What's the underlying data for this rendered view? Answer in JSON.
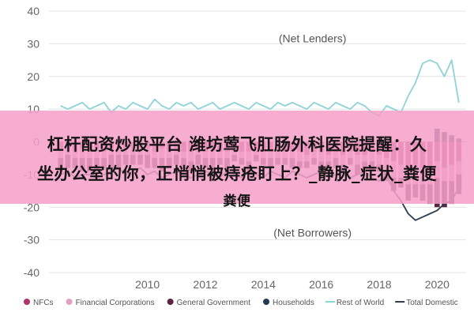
{
  "chart_data": {
    "type": "bar",
    "title": "",
    "xlabel": "",
    "ylabel": "",
    "ylim": [
      -40,
      40
    ],
    "xlim": [
      2006.6,
      2021.0
    ],
    "yticks": [
      -40,
      -30,
      -20,
      -10,
      0,
      10,
      20,
      30,
      40
    ],
    "ytick_labels": [
      "-40",
      "-30",
      "-20",
      "-10",
      "0",
      "10",
      "20",
      "30",
      "40"
    ],
    "xticks": [
      2010,
      2012,
      2014,
      2016,
      2018,
      2020
    ],
    "xtick_labels": [
      "2010",
      "2012",
      "2014",
      "2016",
      "2018",
      "2020"
    ],
    "grid": true,
    "legend_position": "bottom",
    "annotations": [
      {
        "id": "net-lenders",
        "text": "(Net Lenders)",
        "x": 2015.7,
        "y": 30.5
      },
      {
        "id": "net-borrowers",
        "text": "(Net Borrowers)",
        "x": 2015.7,
        "y": -29
      }
    ],
    "x": [
      2007.0,
      2007.25,
      2007.5,
      2007.75,
      2008.0,
      2008.25,
      2008.5,
      2008.75,
      2009.0,
      2009.25,
      2009.5,
      2009.75,
      2010.0,
      2010.25,
      2010.5,
      2010.75,
      2011.0,
      2011.25,
      2011.5,
      2011.75,
      2012.0,
      2012.25,
      2012.5,
      2012.75,
      2013.0,
      2013.25,
      2013.5,
      2013.75,
      2014.0,
      2014.25,
      2014.5,
      2014.75,
      2015.0,
      2015.25,
      2015.5,
      2015.75,
      2016.0,
      2016.25,
      2016.5,
      2016.75,
      2017.0,
      2017.25,
      2017.5,
      2017.75,
      2018.0,
      2018.25,
      2018.5,
      2018.75,
      2019.0,
      2019.25,
      2019.5,
      2019.75,
      2020.0,
      2020.25,
      2020.5,
      2020.75
    ],
    "series": [
      {
        "name": "NFCs",
        "kind": "bar",
        "color": "#b0336e",
        "values": [
          -2,
          -2,
          -3,
          -2,
          -3,
          -2,
          -3,
          -2,
          -1,
          -2,
          -2,
          -1,
          -2,
          -3,
          -2,
          -3,
          -2,
          -3,
          -3,
          -2,
          -3,
          -2,
          -3,
          -3,
          -2,
          -3,
          -3,
          -2,
          -3,
          -3,
          -2,
          -3,
          -3,
          -3,
          -4,
          -3,
          -3,
          -4,
          -3,
          -4,
          -3,
          -4,
          -4,
          -3,
          -4,
          -5,
          -6,
          -7,
          -8,
          -7,
          -8,
          -9,
          -6,
          -8,
          -7,
          -6
        ]
      },
      {
        "name": "Financial Corporations",
        "kind": "bar",
        "color": "#e4a0c0",
        "values": [
          -3,
          -2,
          -2,
          -3,
          -2,
          -3,
          -2,
          -2,
          -3,
          -2,
          -2,
          -3,
          -2,
          -2,
          -3,
          -2,
          -2,
          -2,
          -3,
          -2,
          -2,
          -3,
          -2,
          -2,
          -2,
          -2,
          -3,
          -2,
          -2,
          -2,
          -3,
          -2,
          -2,
          -3,
          -2,
          -2,
          -3,
          -2,
          -2,
          -3,
          -2,
          -3,
          -2,
          -3,
          -3,
          -4,
          -5,
          -4,
          -5,
          -6,
          -5,
          -4,
          -5,
          -4,
          -5,
          -4
        ]
      },
      {
        "name": "General Government",
        "kind": "bar",
        "color": "#5c2342",
        "values": [
          -4,
          -4,
          -3,
          -4,
          -4,
          -4,
          -3,
          -4,
          -4,
          -3,
          -3,
          -3,
          -4,
          -3,
          -4,
          -3,
          -3,
          -3,
          -3,
          -3,
          -3,
          -3,
          -2,
          -3,
          -2,
          -2,
          -3,
          -2,
          -2,
          -3,
          -2,
          -2,
          -3,
          -2,
          -2,
          -2,
          -2,
          -2,
          -3,
          -2,
          -2,
          -3,
          -2,
          -3,
          -2,
          -3,
          -4,
          -3,
          -5,
          -4,
          -5,
          -6,
          -9,
          -8,
          -7,
          -6
        ]
      },
      {
        "name": "Households",
        "kind": "bar",
        "color": "#243a55",
        "values": [
          0,
          0,
          0,
          0,
          0,
          0,
          0,
          0,
          1,
          0,
          0,
          0,
          0,
          0,
          0,
          0,
          0,
          0,
          0,
          0,
          0,
          0,
          0,
          0,
          0,
          0,
          0,
          0,
          0,
          0,
          0,
          0,
          0,
          0,
          0,
          0,
          0,
          0,
          0,
          0,
          0,
          0,
          0,
          0,
          0,
          0,
          0,
          0,
          0,
          0,
          0,
          0,
          4,
          3,
          2,
          1
        ]
      },
      {
        "name": "Rest of World",
        "kind": "line",
        "color": "#8fd3d6",
        "values": [
          11,
          10,
          11,
          12,
          10,
          11,
          12,
          9,
          11,
          10,
          12,
          11,
          10,
          13,
          11,
          10,
          12,
          11,
          12,
          10,
          11,
          12,
          10,
          11,
          12,
          11,
          10,
          12,
          11,
          10,
          12,
          11,
          12,
          11,
          10,
          12,
          11,
          10,
          12,
          11,
          10,
          12,
          11,
          9,
          8,
          11,
          10,
          9,
          14,
          18,
          24,
          25,
          24,
          20,
          25,
          12
        ]
      },
      {
        "name": "Total Domestic",
        "kind": "line",
        "color": "#2b3f4f",
        "values": [
          -10,
          -9,
          -11,
          -10,
          -10,
          -11,
          -10,
          -9,
          -8,
          -10,
          -9,
          -8,
          -10,
          -9,
          -11,
          -10,
          -9,
          -10,
          -11,
          -10,
          -9,
          -10,
          -11,
          -9,
          -10,
          -11,
          -9,
          -10,
          -11,
          -9,
          -10,
          -11,
          -9,
          -10,
          -11,
          -10,
          -9,
          -11,
          -10,
          -9,
          -11,
          -10,
          -9,
          -11,
          -12,
          -10,
          -15,
          -18,
          -22,
          -24,
          -23,
          -22,
          -21,
          -19,
          -18,
          -14
        ]
      }
    ]
  },
  "banner": {
    "line1": "杠杆配资炒股平台 潍坊莺飞肛肠外科医院提醒：久",
    "line2": "坐办公室的你，正悄悄被痔疮盯上？_静脉_症状_粪便",
    "line3": "粪便"
  }
}
